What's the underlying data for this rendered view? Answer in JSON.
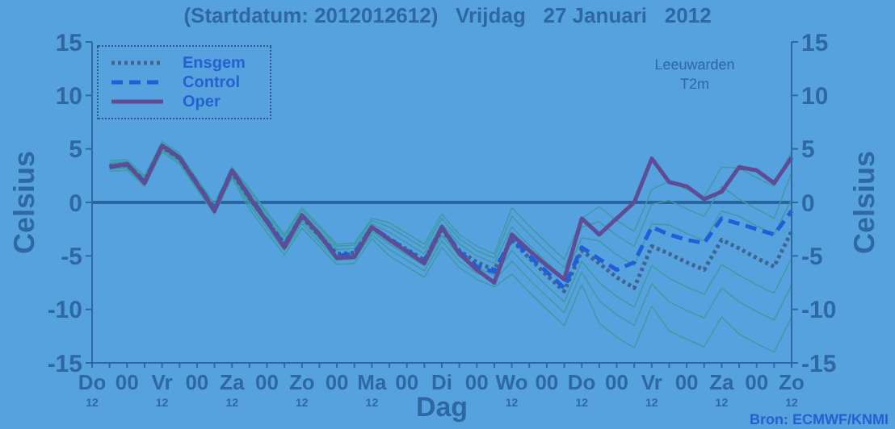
{
  "chart_data": {
    "type": "line",
    "title": "(Startdatum: 2012012612)   Vrijdag   27 Januari   2012",
    "xlabel": "Dag",
    "ylabel": "Celsius",
    "y2label": "Celsius",
    "annotations": [
      "Leeuwarden\nT2m",
      "Bron: ECMWF/KNMI"
    ],
    "categories": [
      "Do\n12",
      null,
      "00",
      null,
      "Vr\n12",
      null,
      "00",
      null,
      "Za\n12",
      null,
      "00",
      null,
      "Zo\n12",
      null,
      "00",
      null,
      "Ma\n12",
      null,
      "00",
      null,
      "Di",
      null,
      "00",
      null,
      "Wo\n12",
      null,
      "00",
      null,
      "Do\n12",
      null,
      "00",
      null,
      "Vr\n12",
      null,
      "00",
      null,
      "Za\n12",
      null,
      "00",
      null,
      "Zo\n12"
    ],
    "ylim": [
      -15,
      15
    ],
    "yticks": [
      -15,
      -10,
      -5,
      0,
      5,
      10,
      15
    ],
    "y2lim": [
      -15,
      15
    ],
    "y2ticks": [
      -15,
      -10,
      -5,
      0,
      5,
      10,
      15
    ],
    "ref_lines": [
      {
        "axis": "y",
        "value": 0,
        "color": "#2a63a0"
      }
    ],
    "legend": "top left",
    "marker": "none",
    "series": [
      {
        "color": "#3f9aa6",
        "line_style": "solid",
        "values": [
          null,
          3.1,
          3.2,
          1.7,
          4.9,
          3.8,
          1.4,
          -0.9,
          2.5,
          -0.2,
          -2.4,
          -4.5,
          -2.0,
          -3.7,
          -5.4,
          -5.3,
          -3.0,
          -4.4,
          -5.4,
          -6.4,
          -3.6,
          -5.5,
          -6.6,
          -7.3,
          -5.5,
          -7.2,
          -8.8,
          -10.3,
          -6.5,
          -9.2,
          -10.5,
          -11.5,
          -7.6,
          -9.3,
          -10.1,
          -10.8,
          -8.0,
          -9.3,
          -10.2,
          -11.0,
          -7.7
        ]
      },
      {
        "color": "#3f9aa6",
        "line_style": "solid",
        "values": [
          null,
          3.9,
          4.0,
          2.5,
          5.7,
          4.6,
          2.2,
          -0.1,
          3.3,
          1.3,
          -0.9,
          -3.0,
          -0.5,
          -2.2,
          -3.9,
          -3.8,
          -1.5,
          -1.9,
          -2.9,
          -3.9,
          -1.1,
          -3.0,
          -4.1,
          -4.8,
          -0.5,
          -2.2,
          -3.8,
          -5.3,
          -1.5,
          -0.4,
          -1.7,
          -2.7,
          1.2,
          2.0,
          1.2,
          0.5,
          3.3,
          3.2,
          2.3,
          1.5,
          4.8
        ]
      },
      {
        "color": "#3f9aa6",
        "line_style": "solid",
        "values": [
          null,
          2.9,
          3.0,
          1.5,
          4.7,
          3.6,
          1.2,
          -1.1,
          2.3,
          -0.6,
          -2.8,
          -4.9,
          -2.4,
          -4.1,
          -5.8,
          -5.7,
          -3.4,
          -5.0,
          -6.0,
          -7.0,
          -4.2,
          -6.1,
          -7.2,
          -7.9,
          -6.7,
          -8.4,
          -10.0,
          -11.5,
          -7.7,
          -11.3,
          -12.6,
          -13.6,
          -9.7,
          -12.0,
          -12.8,
          -13.5,
          -10.7,
          -12.3,
          -13.2,
          -14.0,
          -10.7
        ]
      },
      {
        "color": "#3f9aa6",
        "line_style": "solid",
        "values": [
          null,
          3.6,
          3.7,
          2.2,
          5.4,
          4.3,
          1.9,
          -0.4,
          3.0,
          0.8,
          -1.4,
          -3.5,
          -1.0,
          -2.7,
          -4.4,
          -4.3,
          -2.0,
          -2.8,
          -3.8,
          -4.8,
          -2.0,
          -3.9,
          -5.0,
          -5.7,
          -2.3,
          -4.0,
          -5.6,
          -7.1,
          -3.3,
          -3.6,
          -4.9,
          -5.9,
          -2.0,
          -2.1,
          -2.9,
          -3.6,
          -0.8,
          -1.3,
          -2.2,
          -3.0,
          0.3
        ]
      },
      {
        "color": "#3f9aa6",
        "line_style": "solid",
        "values": [
          null,
          3.2,
          3.3,
          1.8,
          5.0,
          3.9,
          1.5,
          -0.8,
          2.6,
          0.1,
          -2.1,
          -4.2,
          -1.7,
          -3.4,
          -5.1,
          -5.0,
          -2.7,
          -3.9,
          -4.9,
          -5.9,
          -3.1,
          -5.0,
          -6.1,
          -6.8,
          -4.5,
          -6.2,
          -7.8,
          -9.3,
          -5.5,
          -7.5,
          -8.8,
          -9.8,
          -5.9,
          -7.1,
          -7.9,
          -8.6,
          -5.8,
          -6.8,
          -7.7,
          -8.5,
          -5.2
        ]
      },
      {
        "color": "#3f9aa6",
        "line_style": "solid",
        "values": [
          null,
          3.7,
          3.8,
          2.3,
          5.5,
          4.4,
          2.0,
          -0.3,
          3.1,
          1.1,
          -1.1,
          -3.2,
          -0.7,
          -2.4,
          -4.1,
          -4.0,
          -1.7,
          -2.3,
          -3.3,
          -4.3,
          -1.5,
          -3.4,
          -4.5,
          -5.2,
          -1.3,
          -3.0,
          -4.6,
          -6.1,
          -2.3,
          -1.8,
          -3.1,
          -4.1,
          -0.2,
          0.2,
          -0.6,
          -1.3,
          1.5,
          0.3,
          -0.6,
          -1.5,
          2.8
        ]
      },
      {
        "name": "Ensgem",
        "color": "#3d6590",
        "line_style": "dotted",
        "values": [
          null,
          3.4,
          3.5,
          2.0,
          5.2,
          4.1,
          1.7,
          -0.6,
          2.8,
          0.4,
          -1.8,
          -3.9,
          -1.4,
          -3.1,
          -4.8,
          -4.7,
          -2.4,
          -3.4,
          -4.4,
          -5.4,
          -2.6,
          -4.5,
          -5.6,
          -6.3,
          -3.5,
          -5.2,
          -6.8,
          -8.3,
          -4.5,
          -5.7,
          -7.0,
          -8.0,
          -4.1,
          -4.8,
          -5.6,
          -6.3,
          -3.5,
          -4.3,
          -5.2,
          -6.0,
          -2.7
        ]
      },
      {
        "name": "Control",
        "color": "#1f60d8",
        "line_style": "dashed",
        "values": [
          null,
          3.3,
          3.6,
          1.9,
          5.3,
          4.2,
          1.8,
          -0.6,
          3.0,
          0.6,
          -1.7,
          -4.0,
          -1.2,
          -3.0,
          -5.0,
          -4.8,
          -2.3,
          -3.4,
          -4.5,
          -5.5,
          -2.3,
          -4.6,
          -6.0,
          -6.5,
          -3.3,
          -5.0,
          -6.5,
          -8.0,
          -4.2,
          -5.3,
          -6.3,
          -5.6,
          -2.3,
          -3.0,
          -3.5,
          -3.8,
          -1.5,
          -2.0,
          -2.5,
          -3.0,
          -0.8
        ]
      },
      {
        "name": "Oper",
        "color": "#5e4c96",
        "line_style": "solid",
        "values": [
          null,
          3.3,
          3.6,
          1.8,
          5.3,
          4.2,
          1.7,
          -0.8,
          3.0,
          0.5,
          -1.8,
          -4.2,
          -1.2,
          -3.0,
          -5.2,
          -5.1,
          -2.3,
          -3.5,
          -4.6,
          -5.7,
          -2.3,
          -4.8,
          -6.3,
          -7.5,
          -3.0,
          -4.5,
          -5.9,
          -7.2,
          -1.5,
          -3.0,
          -1.5,
          0.0,
          4.1,
          1.9,
          1.5,
          0.3,
          1.0,
          3.3,
          3.0,
          1.8,
          4.2
        ]
      }
    ]
  }
}
